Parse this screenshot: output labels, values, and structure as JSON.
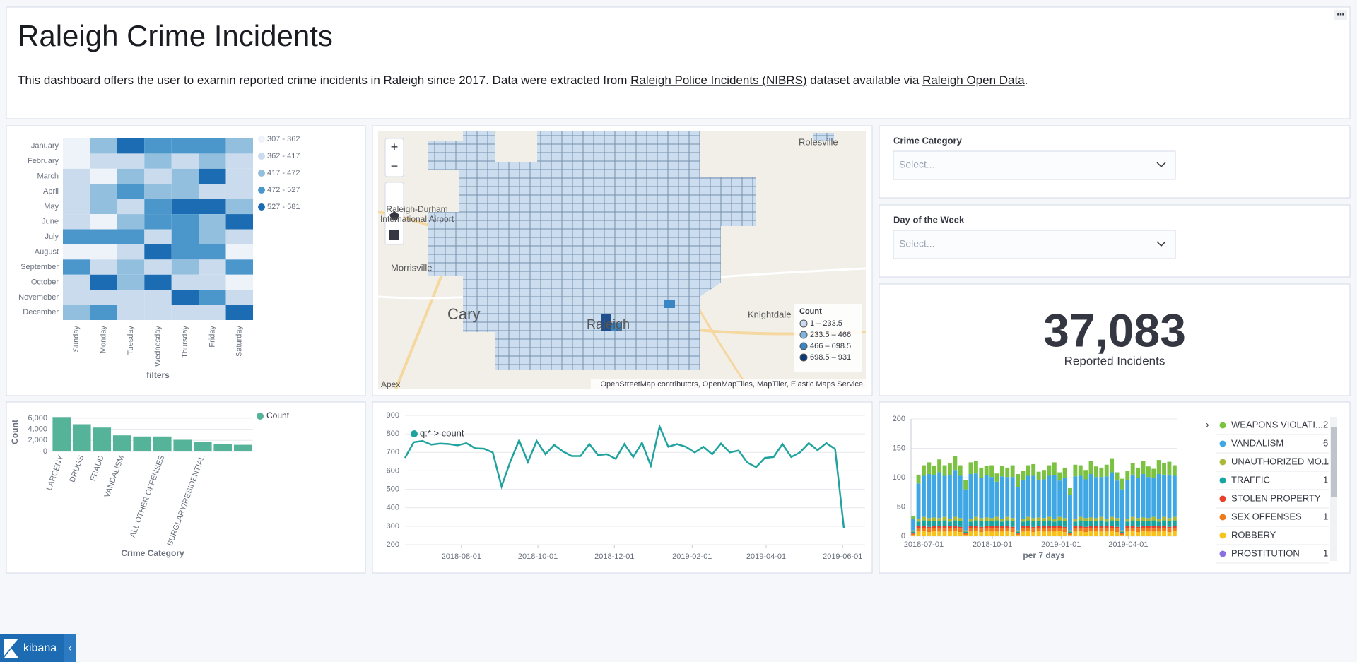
{
  "header": {
    "title": "Raleigh Crime Incidents",
    "description": [
      "This dashboard offers the user to examin reported crime incidents in Raleigh since 2017. Data were extracted from ",
      "Raleigh Police Incidents (NIBRS)",
      " dataset available via ",
      "Raleigh Open Data",
      "."
    ],
    "links": [
      1,
      3
    ]
  },
  "heatmap": {
    "type": "heatmap",
    "categories": [
      "January",
      "February",
      "March",
      "April",
      "May",
      "June",
      "July",
      "August",
      "September",
      "October",
      "Novemeber",
      "December"
    ],
    "x_categories": [
      "Sunday",
      "Monday",
      "Tuesday",
      "Wednesday",
      "Thursday",
      "Friday",
      "Saturday"
    ],
    "values": [
      [
        330,
        445,
        555,
        500,
        500,
        500,
        445
      ],
      [
        330,
        390,
        390,
        445,
        390,
        445,
        390
      ],
      [
        390,
        330,
        445,
        390,
        445,
        555,
        390
      ],
      [
        390,
        445,
        500,
        445,
        445,
        390,
        390
      ],
      [
        390,
        445,
        390,
        500,
        555,
        555,
        445
      ],
      [
        390,
        330,
        445,
        500,
        500,
        445,
        555
      ],
      [
        500,
        500,
        500,
        390,
        500,
        445,
        390
      ],
      [
        330,
        330,
        390,
        555,
        500,
        500,
        330
      ],
      [
        500,
        390,
        445,
        390,
        445,
        390,
        500
      ],
      [
        390,
        555,
        445,
        555,
        390,
        390,
        330
      ],
      [
        390,
        390,
        390,
        390,
        555,
        500,
        390
      ],
      [
        445,
        500,
        390,
        390,
        390,
        390,
        555
      ]
    ],
    "bins": [
      307,
      362,
      417,
      472,
      527,
      581
    ],
    "bin_labels": [
      "307 - 362",
      "362 - 417",
      "417 - 472",
      "472 - 527",
      "527 - 581"
    ],
    "colors": [
      "#eef3f9",
      "#cadbee",
      "#93bfdf",
      "#4b97cb",
      "#1c6cb3"
    ],
    "x_label": "filters"
  },
  "map": {
    "places": [
      "Rolesville",
      "Raleigh-Durham",
      "International Airport",
      "Morrisville",
      "Cary",
      "Knightdale",
      "Apex",
      "Raleigh"
    ],
    "legend_title": "Count",
    "legend_labels": [
      "1 – 233.5",
      "233.5 – 466",
      "466 – 698.5",
      "698.5 – 931"
    ],
    "legend_colors": [
      "#c9dcef",
      "#7fb3dc",
      "#3a85c3",
      "#0b3a78"
    ],
    "attribution": "OpenStreetMap contributors, OpenMapTiles, MapTiler, Elastic Maps Service"
  },
  "controls": [
    {
      "label": "Crime Category",
      "placeholder": "Select..."
    },
    {
      "label": "Day of the Week",
      "placeholder": "Select..."
    }
  ],
  "metric": {
    "value": "37,083",
    "label": "Reported Incidents"
  },
  "category_bars": {
    "type": "bar",
    "categories": [
      "LARCENY",
      "DRUGS",
      "FRAUD",
      "VANDALISM",
      null,
      "ALL OTHER OFFENSES",
      null,
      "BURGLARY/RESIDENTIAL",
      null,
      null
    ],
    "values": [
      6200,
      4900,
      4300,
      2900,
      2700,
      2700,
      2100,
      1700,
      1400,
      1200
    ],
    "color": "#54b399",
    "ylim": [
      0,
      7000
    ],
    "yticks": [
      0,
      {
        "value": 2000,
        "label": "2,000"
      },
      {
        "value": 4000,
        "label": "4,000"
      },
      {
        "value": 6000,
        "label": "6,000"
      }
    ],
    "y_label": "Count",
    "x_label": "Crime Category",
    "legend": "Count"
  },
  "line": {
    "type": "line",
    "x": [
      "2018-06-17",
      "2018-06-24",
      "2018-07-01",
      "2018-07-08",
      "2018-07-15",
      "2018-07-22",
      "2018-07-29",
      "2018-08-05",
      "2018-08-12",
      "2018-08-19",
      "2018-08-26",
      "2018-09-02",
      "2018-09-09",
      "2018-09-16",
      "2018-09-23",
      "2018-09-30",
      "2018-10-07",
      "2018-10-14",
      "2018-10-21",
      "2018-10-28",
      "2018-11-04",
      "2018-11-11",
      "2018-11-18",
      "2018-11-25",
      "2018-12-02",
      "2018-12-09",
      "2018-12-16",
      "2018-12-23",
      "2018-12-30",
      "2019-01-06",
      "2019-01-13",
      "2019-01-20",
      "2019-01-27",
      "2019-02-03",
      "2019-02-10",
      "2019-02-17",
      "2019-02-24",
      "2019-03-03",
      "2019-03-10",
      "2019-03-17",
      "2019-03-24",
      "2019-03-31",
      "2019-04-07",
      "2019-04-14",
      "2019-04-21",
      "2019-04-28",
      "2019-05-05",
      "2019-05-12",
      "2019-05-19",
      "2019-05-26",
      "2019-06-02"
    ],
    "series": [
      {
        "name": "q:* > count",
        "color": "#20a39e",
        "values": [
          670,
          755,
          762,
          742,
          748,
          745,
          738,
          750,
          722,
          720,
          700,
          515,
          650,
          765,
          648,
          762,
          690,
          740,
          705,
          680,
          680,
          745,
          685,
          690,
          665,
          745,
          675,
          752,
          628,
          840,
          730,
          745,
          730,
          700,
          730,
          690,
          748,
          700,
          710,
          645,
          620,
          670,
          675,
          745,
          675,
          700,
          750,
          712,
          750,
          718,
          290
        ]
      }
    ],
    "xlim": [
      "2018-06-17",
      "2019-06-02"
    ],
    "xticks": [
      "2018-08-01",
      "2018-10-01",
      "2018-12-01",
      "2019-02-01",
      "2019-04-01",
      "2019-06-01"
    ],
    "ylim": [
      200,
      900
    ],
    "yticks": [
      200,
      300,
      400,
      500,
      600,
      700,
      800,
      900
    ],
    "grid": true
  },
  "stacked": {
    "type": "stacked-bar",
    "x": [
      "2018-06-17",
      "2018-06-24",
      "2018-07-01",
      "2018-07-08",
      "2018-07-15",
      "2018-07-22",
      "2018-07-29",
      "2018-08-05",
      "2018-08-12",
      "2018-08-19",
      "2018-08-26",
      "2018-09-02",
      "2018-09-09",
      "2018-09-16",
      "2018-09-23",
      "2018-09-30",
      "2018-10-07",
      "2018-10-14",
      "2018-10-21",
      "2018-10-28",
      "2018-11-04",
      "2018-11-11",
      "2018-11-18",
      "2018-11-25",
      "2018-12-02",
      "2018-12-09",
      "2018-12-16",
      "2018-12-23",
      "2018-12-30",
      "2019-01-06",
      "2019-01-13",
      "2019-01-20",
      "2019-01-27",
      "2019-02-03",
      "2019-02-10",
      "2019-02-17",
      "2019-02-24",
      "2019-03-03",
      "2019-03-10",
      "2019-03-17",
      "2019-03-24",
      "2019-03-31",
      "2019-04-07",
      "2019-04-14",
      "2019-04-21",
      "2019-04-28",
      "2019-05-05",
      "2019-05-12",
      "2019-05-19",
      "2019-05-26",
      "2019-06-02"
    ],
    "series": [
      {
        "name": "PROSTITUTION",
        "color": "#8b70e0",
        "values": [
          0,
          1,
          1,
          0,
          1,
          1,
          0,
          1,
          1,
          0,
          0,
          1,
          1,
          0,
          1,
          1,
          0,
          1,
          1,
          0,
          0,
          1,
          1,
          0,
          1,
          1,
          0,
          1,
          1,
          0,
          0,
          1,
          1,
          0,
          1,
          1,
          0,
          1,
          1,
          0,
          0,
          1,
          1,
          0,
          1,
          1,
          0,
          1,
          1,
          0,
          1
        ]
      },
      {
        "name": "ROBBERY",
        "color": "#f7c31a",
        "values": [
          2,
          7,
          8,
          7,
          8,
          7,
          8,
          7,
          8,
          7,
          2,
          7,
          8,
          7,
          8,
          7,
          8,
          7,
          8,
          7,
          2,
          7,
          8,
          7,
          8,
          7,
          8,
          7,
          8,
          7,
          2,
          7,
          8,
          7,
          8,
          7,
          8,
          7,
          8,
          7,
          2,
          7,
          8,
          7,
          8,
          7,
          8,
          7,
          8,
          7,
          8
        ]
      },
      {
        "name": "SEX OFFENSES",
        "color": "#ee7a1c",
        "values": [
          2,
          6,
          5,
          6,
          5,
          6,
          5,
          6,
          5,
          6,
          2,
          6,
          5,
          6,
          5,
          6,
          5,
          6,
          5,
          6,
          2,
          6,
          5,
          6,
          5,
          6,
          5,
          6,
          5,
          6,
          2,
          6,
          5,
          6,
          5,
          6,
          5,
          6,
          5,
          6,
          2,
          6,
          5,
          6,
          5,
          6,
          5,
          6,
          5,
          6,
          5
        ]
      },
      {
        "name": "STOLEN PROPERTY",
        "color": "#e7402b",
        "values": [
          1,
          3,
          4,
          3,
          4,
          3,
          4,
          3,
          4,
          3,
          1,
          3,
          4,
          3,
          4,
          3,
          4,
          3,
          4,
          3,
          1,
          3,
          4,
          3,
          4,
          3,
          4,
          3,
          4,
          3,
          1,
          3,
          4,
          3,
          4,
          3,
          4,
          3,
          4,
          3,
          1,
          3,
          4,
          3,
          4,
          3,
          4,
          3,
          4,
          3,
          4
        ]
      },
      {
        "name": "TRAFFIC",
        "color": "#18a5a2",
        "values": [
          3,
          8,
          9,
          10,
          8,
          9,
          10,
          8,
          9,
          10,
          3,
          8,
          9,
          10,
          8,
          9,
          10,
          8,
          9,
          10,
          3,
          8,
          9,
          10,
          8,
          9,
          10,
          8,
          9,
          10,
          3,
          8,
          9,
          10,
          8,
          9,
          10,
          8,
          9,
          10,
          3,
          8,
          9,
          10,
          8,
          9,
          10,
          8,
          9,
          10,
          9
        ]
      },
      {
        "name": "UNAUTHORIZED MO...",
        "color": "#aab836",
        "values": [
          2,
          5,
          6,
          5,
          6,
          5,
          6,
          5,
          6,
          5,
          2,
          5,
          6,
          5,
          6,
          5,
          6,
          5,
          6,
          5,
          2,
          5,
          6,
          5,
          6,
          5,
          6,
          5,
          6,
          5,
          2,
          5,
          6,
          5,
          6,
          5,
          6,
          5,
          6,
          5,
          2,
          5,
          6,
          5,
          6,
          5,
          6,
          5,
          6,
          5,
          6
        ]
      },
      {
        "name": "VANDALISM",
        "color": "#3fa7e4",
        "values": [
          20,
          60,
          70,
          75,
          72,
          78,
          70,
          74,
          80,
          72,
          70,
          76,
          74,
          68,
          72,
          70,
          60,
          72,
          68,
          70,
          74,
          66,
          70,
          72,
          64,
          66,
          70,
          74,
          62,
          68,
          60,
          72,
          70,
          66,
          74,
          70,
          68,
          72,
          76,
          64,
          70,
          66,
          72,
          68,
          74,
          70,
          66,
          76,
          72,
          74,
          70
        ]
      },
      {
        "name": "WEAPONS VIOLATI...",
        "color": "#7cc242",
        "values": [
          5,
          15,
          18,
          20,
          16,
          22,
          18,
          20,
          24,
          18,
          16,
          20,
          22,
          18,
          16,
          20,
          14,
          18,
          16,
          20,
          22,
          16,
          18,
          20,
          14,
          16,
          18,
          22,
          14,
          18,
          12,
          20,
          18,
          16,
          22,
          18,
          16,
          20,
          24,
          14,
          18,
          16,
          20,
          18,
          22,
          18,
          16,
          24,
          20,
          22,
          18
        ]
      }
    ],
    "legend_counts": [
      "1",
      null,
      "1",
      null,
      "1",
      "1",
      "6",
      "2"
    ],
    "xlim": [
      "2018-06-14",
      "2019-06-05"
    ],
    "xticks": [
      "2018-07-01",
      "2018-10-01",
      "2019-01-01",
      "2019-04-01"
    ],
    "ylim": [
      0,
      200
    ],
    "yticks": [
      0,
      50,
      100,
      150,
      200
    ],
    "x_label": "per 7 days",
    "grid": true
  },
  "brand": "kibana"
}
